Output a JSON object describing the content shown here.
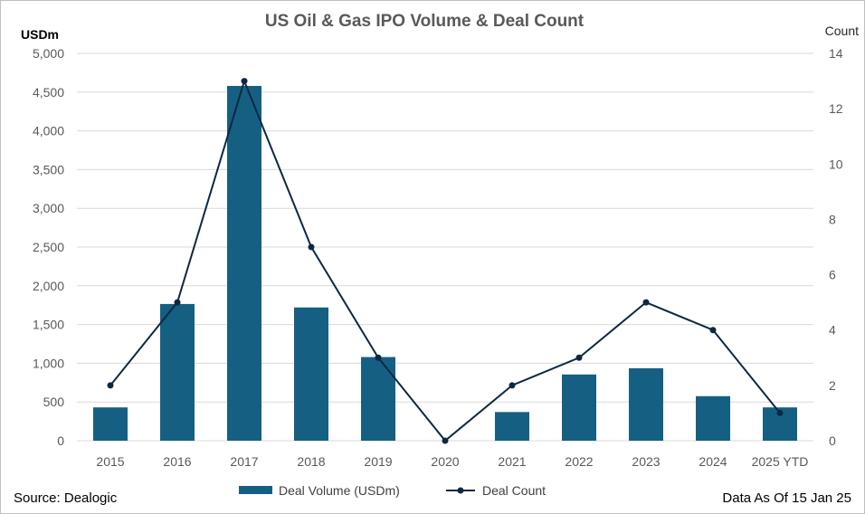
{
  "chart_data": {
    "type": "bar",
    "title": "US Oil & Gas IPO Volume & Deal Count",
    "categories": [
      "2015",
      "2016",
      "2017",
      "2018",
      "2019",
      "2020",
      "2021",
      "2022",
      "2023",
      "2024",
      "2025 YTD"
    ],
    "series": [
      {
        "name": "Deal Volume (USDm)",
        "type": "bar",
        "axis": "left",
        "color": "#156082",
        "values": [
          430,
          1765,
          4580,
          1720,
          1080,
          0,
          370,
          855,
          935,
          575,
          430
        ]
      },
      {
        "name": "Deal Count",
        "type": "line",
        "axis": "right",
        "color": "#0e2841",
        "values": [
          2,
          5,
          13,
          7,
          3,
          0,
          2,
          3,
          5,
          4,
          1
        ]
      }
    ],
    "y_left": {
      "label": "USDm",
      "ylim": [
        0,
        5000
      ],
      "ticks": [
        "0",
        "500",
        "1,000",
        "1,500",
        "2,000",
        "2,500",
        "3,000",
        "3,500",
        "4,000",
        "4,500",
        "5,000"
      ]
    },
    "y_right": {
      "label": "Count",
      "ylim": [
        0,
        14
      ],
      "ticks": [
        "0",
        "2",
        "4",
        "6",
        "8",
        "10",
        "12",
        "14"
      ]
    },
    "grid": true,
    "legend": "bottom-center"
  },
  "footer": {
    "source": "Source: Dealogic",
    "data_as_of": "Data As Of 15 Jan 25"
  }
}
